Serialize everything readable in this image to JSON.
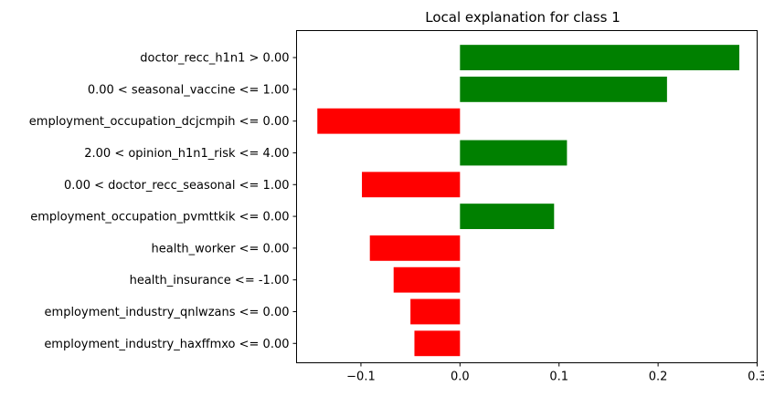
{
  "chart_data": {
    "type": "bar",
    "orientation": "horizontal",
    "title": "Local explanation for class 1",
    "xlabel": "",
    "ylabel": "",
    "xlim": [
      -0.165,
      0.3
    ],
    "xticks": [
      -0.1,
      0.0,
      0.1,
      0.2,
      0.3
    ],
    "xtick_labels": [
      "−0.1",
      "0.0",
      "0.1",
      "0.2",
      "0.3"
    ],
    "grid": false,
    "legend": "none",
    "positive_color": "#008000",
    "negative_color": "#ff0000",
    "categories": [
      "doctor_recc_h1n1 > 0.00",
      "0.00 < seasonal_vaccine <= 1.00",
      "employment_occupation_dcjcmpih <= 0.00",
      "2.00 < opinion_h1n1_risk <= 4.00",
      "0.00 < doctor_recc_seasonal <= 1.00",
      "employment_occupation_pvmttkik <= 0.00",
      "health_worker <= 0.00",
      "health_insurance <= -1.00",
      "employment_industry_qnlwzans <= 0.00",
      "employment_industry_haxffmxo <= 0.00"
    ],
    "values": [
      0.282,
      0.209,
      -0.144,
      0.108,
      -0.099,
      0.095,
      -0.091,
      -0.067,
      -0.05,
      -0.046
    ]
  }
}
